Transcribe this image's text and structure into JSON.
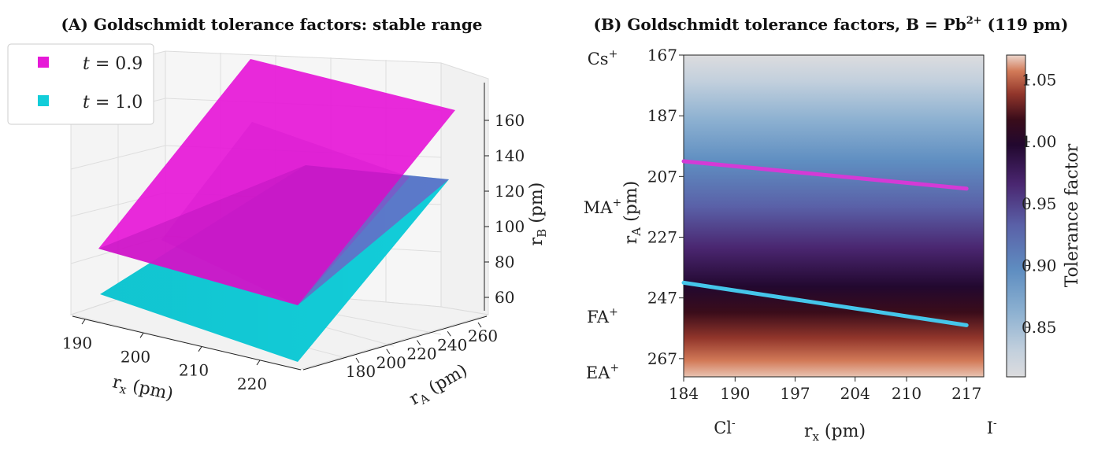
{
  "chart_data": [
    {
      "panel": "A",
      "type": "3d-surface",
      "title": "(A) Goldschmidt tolerance factors: stable range",
      "xlabel": "r_x (pm)",
      "ylabel": "r_A (pm)",
      "zlabel": "r_B (pm)",
      "x_ticks": [
        "190",
        "200",
        "210",
        "220"
      ],
      "y_ticks": [
        "180",
        "200",
        "220",
        "240",
        "260"
      ],
      "z_ticks": [
        "60",
        "80",
        "100",
        "120",
        "140",
        "160"
      ],
      "legend": [
        {
          "label": "t = 0.9",
          "t": "t",
          "eq": " = 0.9",
          "color": "#e619d7"
        },
        {
          "label": "t = 1.0",
          "t": "t",
          "eq": " = 1.0",
          "color": "#12cdd9"
        }
      ]
    },
    {
      "panel": "B",
      "type": "heatmap",
      "title": "(B) Goldschmidt tolerance factors, B = Pb2+ (119 pm)",
      "title_main": "(B) Goldschmidt tolerance factors, B = Pb",
      "title_sup": "2+",
      "title_tail": " (119 pm)",
      "xlabel": "r_x (pm)",
      "ylabel": "r_A (pm)",
      "x_ticks": [
        184,
        190,
        197,
        204,
        210,
        217
      ],
      "y_ticks": [
        167,
        187,
        207,
        227,
        247,
        267
      ],
      "xlim": [
        184,
        219
      ],
      "ylim": [
        167,
        273
      ],
      "x_ions": [
        {
          "label": "Cl",
          "sup": "-"
        },
        {
          "label": "I",
          "sup": "-"
        }
      ],
      "y_ions": [
        {
          "label": "Cs",
          "sup": "+",
          "r_A": 167
        },
        {
          "label": "MA",
          "sup": "+",
          "r_A": 217
        },
        {
          "label": "FA",
          "sup": "+",
          "r_A": 253
        },
        {
          "label": "EA",
          "sup": "+",
          "r_A": 274
        }
      ],
      "contours": [
        {
          "t": 0.9,
          "color": "#d43ad6",
          "points": [
            [
              184,
              202
            ],
            [
              217,
              211
            ]
          ]
        },
        {
          "t": 1.0,
          "color": "#45c6ea",
          "points": [
            [
              184,
              242
            ],
            [
              217,
              256
            ]
          ]
        }
      ],
      "colorbar": {
        "label": "Tolerance factor",
        "range": [
          0.81,
          1.07
        ],
        "ticks": [
          "0.85",
          "0.90",
          "0.95",
          "1.00",
          "1.05"
        ]
      }
    }
  ]
}
